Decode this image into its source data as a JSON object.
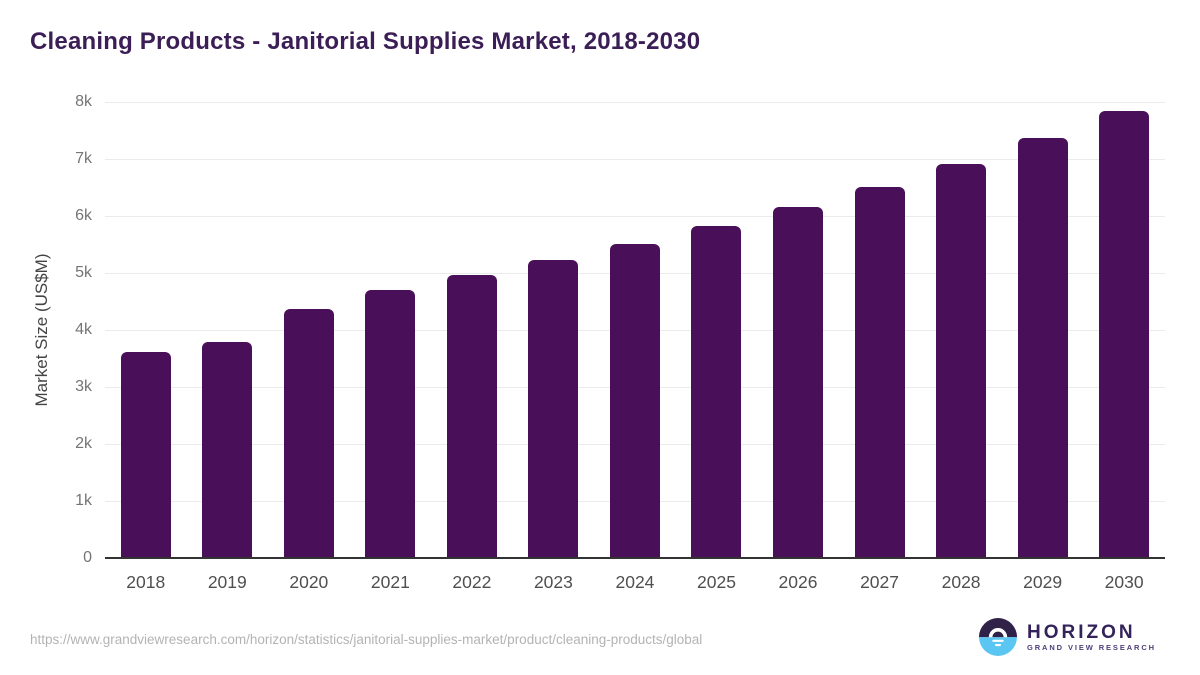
{
  "header": {
    "title": "Cleaning Products - Janitorial Supplies Market, 2018-2030"
  },
  "chart_data": {
    "type": "bar",
    "title": "Cleaning Products - Janitorial Supplies Market, 2018-2030",
    "categories": [
      "2018",
      "2019",
      "2020",
      "2021",
      "2022",
      "2023",
      "2024",
      "2025",
      "2026",
      "2027",
      "2028",
      "2029",
      "2030"
    ],
    "values": [
      3620,
      3790,
      4370,
      4700,
      4960,
      5230,
      5510,
      5820,
      6150,
      6510,
      6910,
      7370,
      7840
    ],
    "xlabel": "",
    "ylabel": "Market Size (US$M)",
    "ylim": [
      0,
      8000
    ],
    "ytick_step": 1000,
    "ytick_labels": [
      "0",
      "1k",
      "2k",
      "3k",
      "4k",
      "5k",
      "6k",
      "7k",
      "8k"
    ],
    "grid": "horizontal",
    "legend": "none",
    "bar_color": "#491059"
  },
  "footer": {
    "source_url": "https://www.grandviewresearch.com/horizon/statistics/janitorial-supplies-market/product/cleaning-products/global",
    "logo": {
      "name": "HORIZON",
      "tagline": "GRAND VIEW RESEARCH"
    }
  },
  "colors": {
    "title": "#3b1e56",
    "bar": "#491059",
    "ytick_label": "#757575",
    "xtick_label": "#4f4f4f",
    "gridline": "#ebebeb",
    "axis_line": "#333333",
    "source_url": "#b3b3b3",
    "logo_dark": "#2f2147",
    "logo_blue": "#5bc6f2"
  }
}
